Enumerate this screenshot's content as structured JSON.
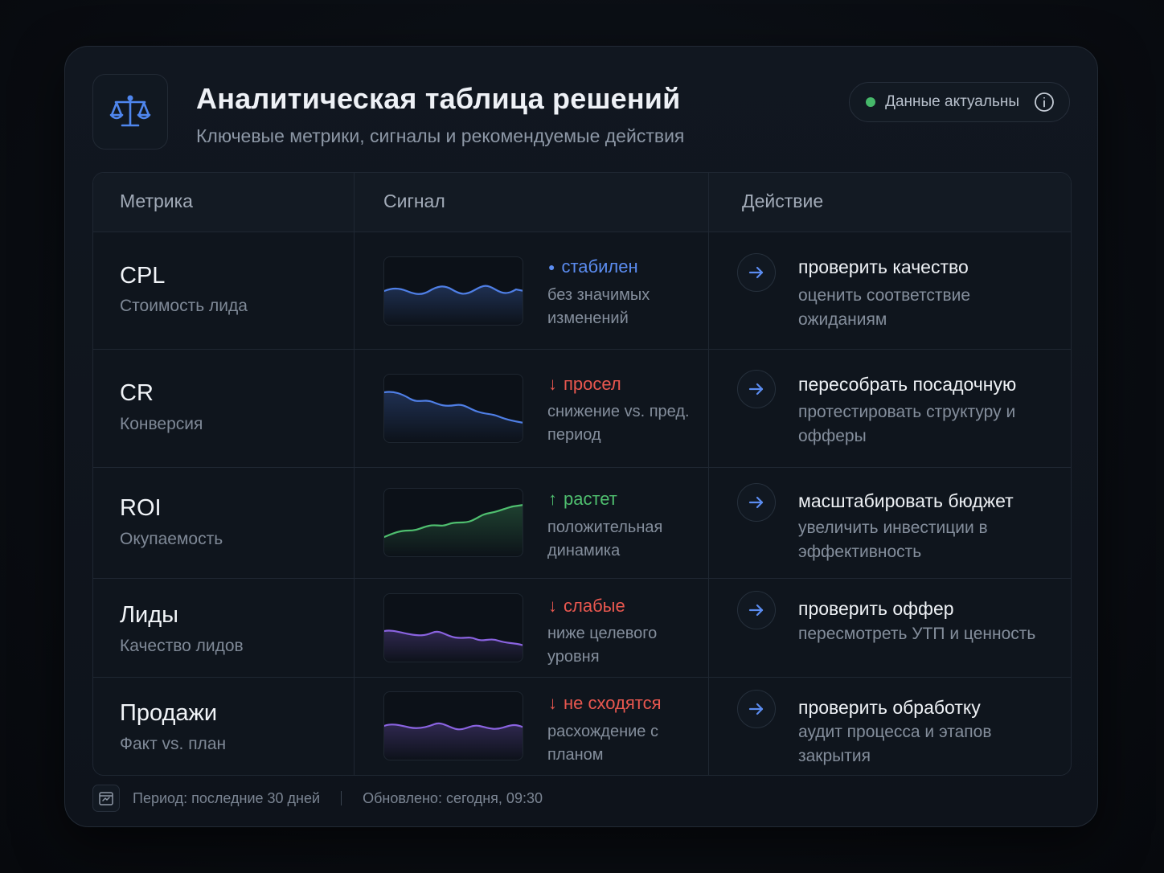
{
  "header": {
    "title": "Аналитическая таблица решений",
    "subtitle": "Ключевые метрики, сигналы и рекомендуемые действия",
    "logo_icon": "scales-icon",
    "status": {
      "label": "Данные актуальны",
      "dot_color": "#46b86a",
      "icon": "info-icon"
    }
  },
  "table": {
    "columns": [
      "Метрика",
      "Сигнал",
      "Действие"
    ],
    "rows": [
      {
        "metric": "CPL",
        "metric_desc": "Стоимость лида",
        "signal": {
          "label": "стабилен",
          "marker": "●",
          "trend": "flat",
          "color": "#5b8cf0",
          "desc": "без значимых изменений"
        },
        "action": {
          "title": "проверить качество",
          "desc": "оценить соответствие ожиданиям"
        }
      },
      {
        "metric": "CR",
        "metric_desc": "Конверсия",
        "signal": {
          "label": "просел",
          "marker": "↓",
          "trend": "down",
          "color": "#e8574f",
          "desc": "снижение vs. пред. период"
        },
        "action": {
          "title": "пересобрать посадочную",
          "desc": "протестировать структуру и офферы"
        }
      },
      {
        "metric": "ROI",
        "metric_desc": "Окупаемость",
        "signal": {
          "label": "растет",
          "marker": "↑",
          "trend": "up",
          "color": "#4fbf6f",
          "desc": "положительная динамика"
        },
        "action": {
          "title": "масштабировать бюджет",
          "desc": "увеличить инвестиции в эффективность"
        }
      },
      {
        "metric": "Лиды",
        "metric_desc": "Качество лидов",
        "signal": {
          "label": "слабые",
          "marker": "↓",
          "trend": "down",
          "color": "#e8574f",
          "desc": "ниже целевого уровня"
        },
        "action": {
          "title": "проверить оффер",
          "desc": "пересмотреть УТП и ценность"
        }
      },
      {
        "metric": "Продажи",
        "metric_desc": "Факт vs. план",
        "signal": {
          "label": "не сходятся",
          "marker": "↓",
          "trend": "flat",
          "color": "#e8574f",
          "desc": "расхождение с планом"
        },
        "action": {
          "title": "проверить обработку",
          "desc": "аудит процесса и этапов закрытия"
        }
      }
    ]
  },
  "sparkline_colors": [
    "#4f7fe6",
    "#4f7fe6",
    "#4fbf6f",
    "#8a63e0",
    "#8a63e0"
  ],
  "footer": {
    "period": "Период: последние 30 дней",
    "updated": "Обновлено: сегодня, 09:30",
    "icon": "calendar-icon"
  }
}
